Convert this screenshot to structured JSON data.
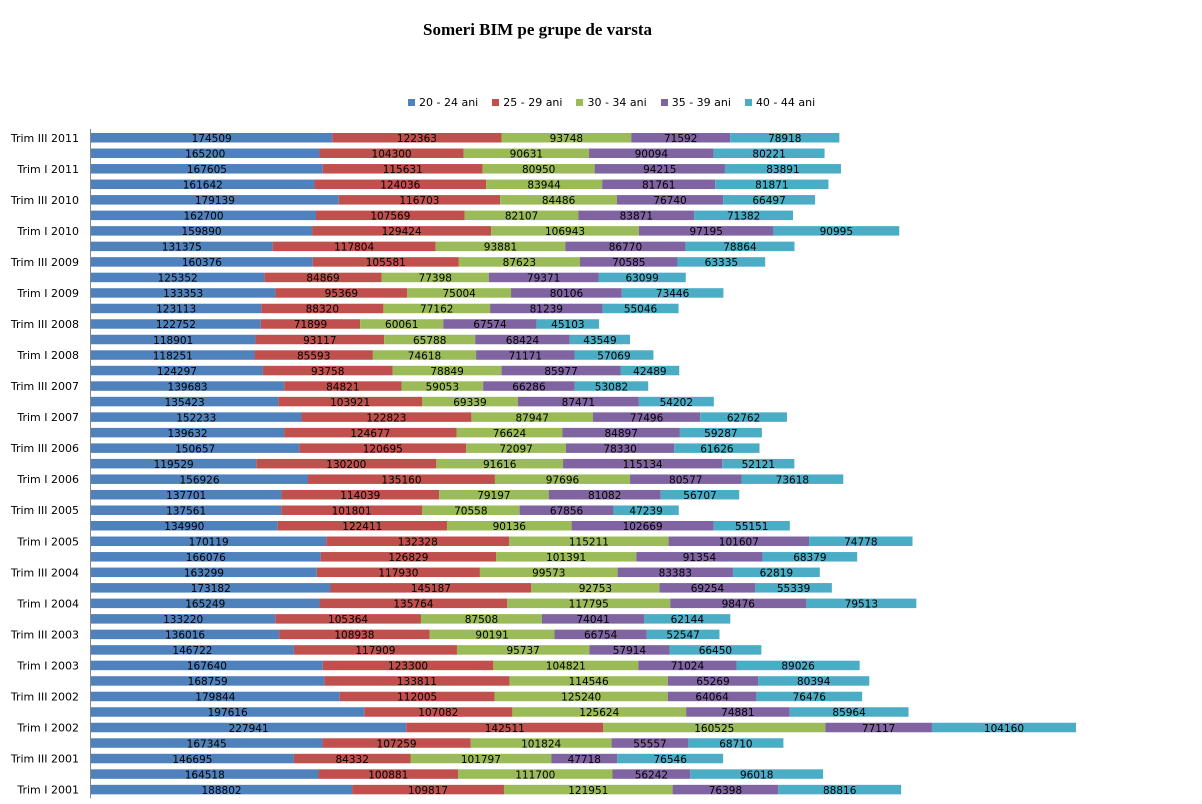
{
  "chart_data": {
    "type": "bar",
    "orientation": "horizontal",
    "stacked": true,
    "title": "Someri BIM pe grupe de varsta",
    "xlabel": "",
    "ylabel": "",
    "legend_position": "top",
    "grid": false,
    "data_labels": true,
    "colors": [
      "#4F81BD",
      "#C0504D",
      "#9BBB59",
      "#8064A2",
      "#4BACC6"
    ],
    "categories": [
      "Trim III 2011",
      "",
      "Trim I 2011",
      "",
      "Trim III 2010",
      "",
      "Trim I 2010",
      "",
      "Trim III 2009",
      "",
      "Trim I 2009",
      "",
      "Trim III 2008",
      "",
      "Trim I 2008",
      "",
      "Trim III 2007",
      "",
      "Trim I 2007",
      "",
      "Trim III 2006",
      "",
      "Trim I 2006",
      "",
      "Trim III 2005",
      "",
      "Trim I 2005",
      "",
      "Trim III 2004",
      "",
      "Trim I 2004",
      "",
      "Trim III 2003",
      "",
      "Trim I 2003",
      "",
      "Trim III 2002",
      "",
      "Trim I 2002",
      "",
      "Trim III 2001",
      "",
      "Trim I 2001"
    ],
    "series": [
      {
        "name": "20 - 24 ani",
        "values": [
          174509,
          165200,
          167605,
          161642,
          179139,
          162700,
          159890,
          131375,
          160376,
          125352,
          133353,
          123113,
          122752,
          118901,
          118251,
          124297,
          139683,
          135423,
          152233,
          139632,
          150657,
          119529,
          156926,
          137701,
          137561,
          134990,
          170119,
          166076,
          163299,
          173182,
          165249,
          133220,
          136016,
          146722,
          167640,
          168759,
          179844,
          197616,
          227941,
          167345,
          146695,
          164518,
          188802
        ]
      },
      {
        "name": "25 - 29 ani",
        "values": [
          122363,
          104300,
          115631,
          124036,
          116703,
          107569,
          129424,
          117804,
          105581,
          84869,
          95369,
          88320,
          71899,
          93117,
          85593,
          93758,
          84821,
          103921,
          122823,
          124677,
          120695,
          130200,
          135160,
          114039,
          101801,
          122411,
          132328,
          126829,
          117930,
          145187,
          135764,
          105364,
          108938,
          117909,
          123300,
          133811,
          112005,
          107082,
          142511,
          107259,
          84332,
          100881,
          109817
        ]
      },
      {
        "name": "30 - 34 ani",
        "values": [
          93748,
          90631,
          80950,
          83944,
          84486,
          82107,
          106943,
          93881,
          87623,
          77398,
          75004,
          77162,
          60061,
          65788,
          74618,
          78849,
          59053,
          69339,
          87947,
          76624,
          72097,
          91616,
          97696,
          79197,
          70558,
          90136,
          115211,
          101391,
          99573,
          92753,
          117795,
          87508,
          90191,
          95737,
          104821,
          114546,
          125240,
          125624,
          160525,
          101824,
          101797,
          111700,
          121951
        ]
      },
      {
        "name": "35 - 39 ani",
        "values": [
          71592,
          90094,
          94215,
          81761,
          76740,
          83871,
          97195,
          86770,
          70585,
          79371,
          80106,
          81239,
          67574,
          68424,
          71171,
          85977,
          66286,
          87471,
          77496,
          84897,
          78330,
          115134,
          80577,
          81082,
          67856,
          102669,
          101607,
          91354,
          83383,
          69254,
          98476,
          74041,
          66754,
          57914,
          71024,
          65269,
          64064,
          74881,
          77117,
          55557,
          47718,
          56242,
          76398
        ]
      },
      {
        "name": "40 - 44 ani",
        "values": [
          78918,
          80221,
          83891,
          81871,
          66497,
          71382,
          90995,
          78864,
          63335,
          63099,
          73446,
          55046,
          45103,
          43549,
          57069,
          42489,
          53082,
          54202,
          62762,
          59287,
          61626,
          52121,
          73618,
          56707,
          47239,
          55151,
          74778,
          68379,
          62819,
          55339,
          79513,
          62144,
          52547,
          66450,
          89026,
          80394,
          76476,
          85964,
          104160,
          68710,
          76546,
          96018,
          88816
        ]
      }
    ]
  }
}
